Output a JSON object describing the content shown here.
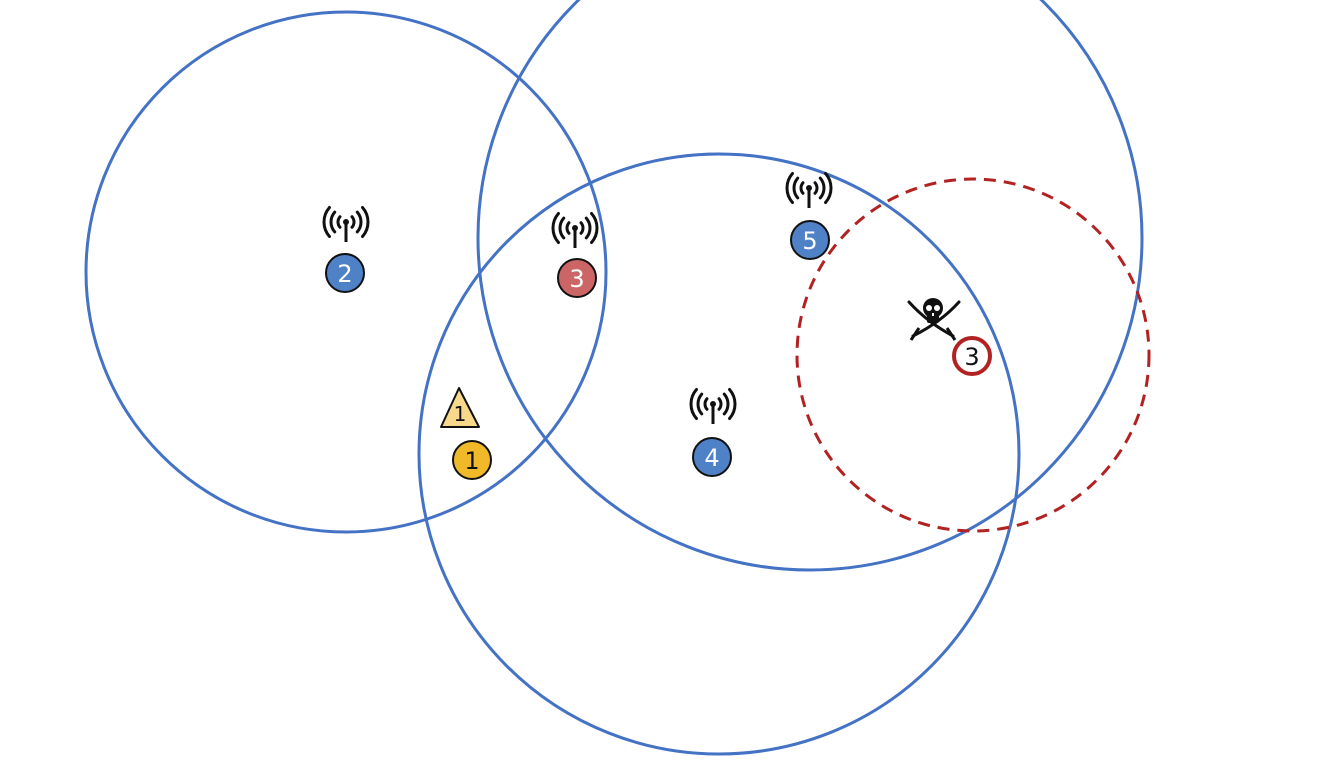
{
  "colors": {
    "coverage": "#4472c4",
    "node_blue": "#4f81c7",
    "node_red": "#cc6666",
    "node_yellow": "#f0b929",
    "triangle_fill": "#f8d98c",
    "attacker": "#b22222",
    "stroke": "#111111"
  },
  "icons": {
    "antenna": "antenna-icon",
    "attacker": "pirate-skull-crossed-swords-icon",
    "warning": "warning-triangle-icon"
  },
  "nodes": [
    {
      "id": "node-2",
      "label": "2",
      "style": "blue",
      "has_antenna": true
    },
    {
      "id": "node-3",
      "label": "3",
      "style": "red",
      "has_antenna": true
    },
    {
      "id": "node-5",
      "label": "5",
      "style": "blue",
      "has_antenna": true
    },
    {
      "id": "node-4",
      "label": "4",
      "style": "blue",
      "has_antenna": true
    },
    {
      "id": "node-1",
      "label": "1",
      "style": "yellow",
      "has_antenna": false
    }
  ],
  "warning": {
    "label": "1"
  },
  "attacker": {
    "label": "3"
  },
  "coverage": [
    {
      "id": "coverage-node-2",
      "style": "solid"
    },
    {
      "id": "coverage-node-5",
      "style": "solid"
    },
    {
      "id": "coverage-node-4",
      "style": "solid"
    },
    {
      "id": "coverage-attacker",
      "style": "dashed"
    }
  ]
}
